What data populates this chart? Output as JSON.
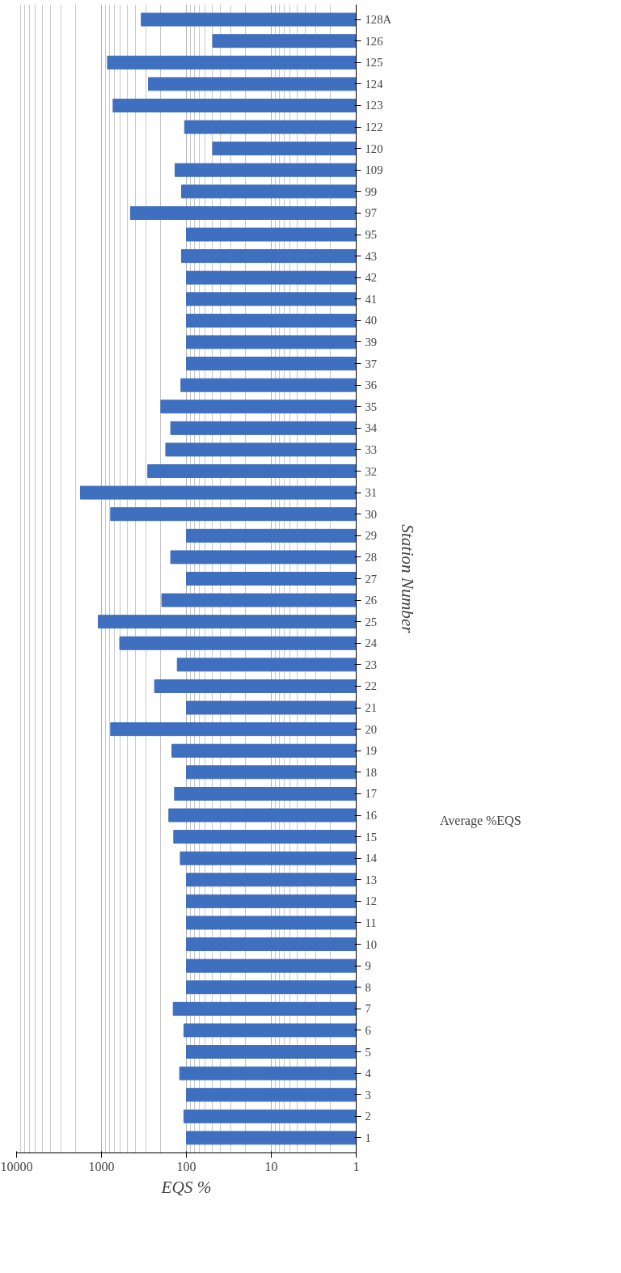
{
  "chart_data": {
    "type": "bar",
    "orientation": "horizontal",
    "log": "x",
    "xlabel": "EQS %",
    "ylabel": "Station Number",
    "categories": [
      "128A",
      "126",
      "125",
      "124",
      "123",
      "122",
      "120",
      "109",
      "99",
      "97",
      "95",
      "43",
      "42",
      "41",
      "40",
      "39",
      "37",
      "36",
      "35",
      "34",
      "33",
      "32",
      "31",
      "30",
      "29",
      "28",
      "27",
      "26",
      "25",
      "24",
      "23",
      "22",
      "21",
      "20",
      "19",
      "18",
      "17",
      "16",
      "15",
      "14",
      "13",
      "12",
      "11",
      "10",
      "9",
      "8",
      "7",
      "6",
      "5",
      "4",
      "3",
      "2",
      "1"
    ],
    "series": [
      {
        "name": "Average %EQS",
        "color": "#3f6fbf",
        "values": [
          340,
          49,
          850,
          280,
          730,
          105,
          49,
          136,
          114,
          456,
          100,
          114,
          100,
          100,
          100,
          100,
          100,
          116,
          200,
          153,
          175,
          285,
          1770,
          780,
          100,
          153,
          100,
          195,
          1090,
          610,
          128,
          237,
          100,
          780,
          148,
          100,
          138,
          161,
          141,
          118,
          100,
          100,
          100,
          100,
          100,
          100,
          143,
          107,
          100,
          120,
          100,
          107,
          100
        ]
      }
    ],
    "xlim": [
      10000,
      1
    ],
    "xticks": [
      10000,
      1000,
      100,
      10,
      1
    ],
    "grid": "x",
    "legend": "right"
  }
}
